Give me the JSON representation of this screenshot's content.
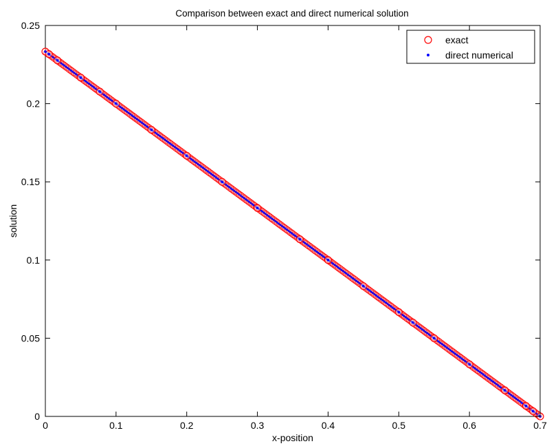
{
  "chart_data": {
    "type": "scatter",
    "title": "Comparison between exact and direct numerical solution",
    "xlabel": "x-position",
    "ylabel": "solution",
    "xlim": [
      0,
      0.7
    ],
    "ylim": [
      0,
      0.25
    ],
    "xticks": [
      0,
      0.1,
      0.2,
      0.3,
      0.4,
      0.5,
      0.6,
      0.7
    ],
    "xtick_labels": [
      "0",
      "0.1",
      "0.2",
      "0.3",
      "0.4",
      "0.5",
      "0.6",
      "0.7"
    ],
    "yticks": [
      0,
      0.05,
      0.1,
      0.15,
      0.2,
      0.25
    ],
    "ytick_labels": [
      "0",
      "0.05",
      "0.1",
      "0.15",
      "0.2",
      "0.25"
    ],
    "grid": false,
    "legend_position": "top-right",
    "series": [
      {
        "name": "exact",
        "marker": "circle-open",
        "color": "#ff0000",
        "x": [
          0.0,
          0.005,
          0.017,
          0.05,
          0.077,
          0.1,
          0.15,
          0.2,
          0.25,
          0.3,
          0.36,
          0.4,
          0.45,
          0.5,
          0.52,
          0.55,
          0.6,
          0.65,
          0.68,
          0.69,
          0.7
        ],
        "y": [
          0.2333,
          0.2317,
          0.2277,
          0.2167,
          0.2077,
          0.2,
          0.1833,
          0.1667,
          0.15,
          0.1333,
          0.1133,
          0.1,
          0.0833,
          0.0667,
          0.06,
          0.05,
          0.0333,
          0.0167,
          0.0067,
          0.0033,
          0.0
        ]
      },
      {
        "name": "direct numerical",
        "marker": "dot",
        "color": "#0000ff",
        "x": [
          0.0,
          0.005,
          0.017,
          0.05,
          0.077,
          0.1,
          0.15,
          0.2,
          0.25,
          0.3,
          0.36,
          0.4,
          0.45,
          0.5,
          0.52,
          0.55,
          0.6,
          0.65,
          0.68,
          0.69,
          0.7
        ],
        "y": [
          0.2333,
          0.2317,
          0.2277,
          0.2167,
          0.2077,
          0.2,
          0.1833,
          0.1667,
          0.15,
          0.1333,
          0.1133,
          0.1,
          0.0833,
          0.0667,
          0.06,
          0.05,
          0.0333,
          0.0167,
          0.0067,
          0.0033,
          0.0
        ]
      }
    ]
  }
}
